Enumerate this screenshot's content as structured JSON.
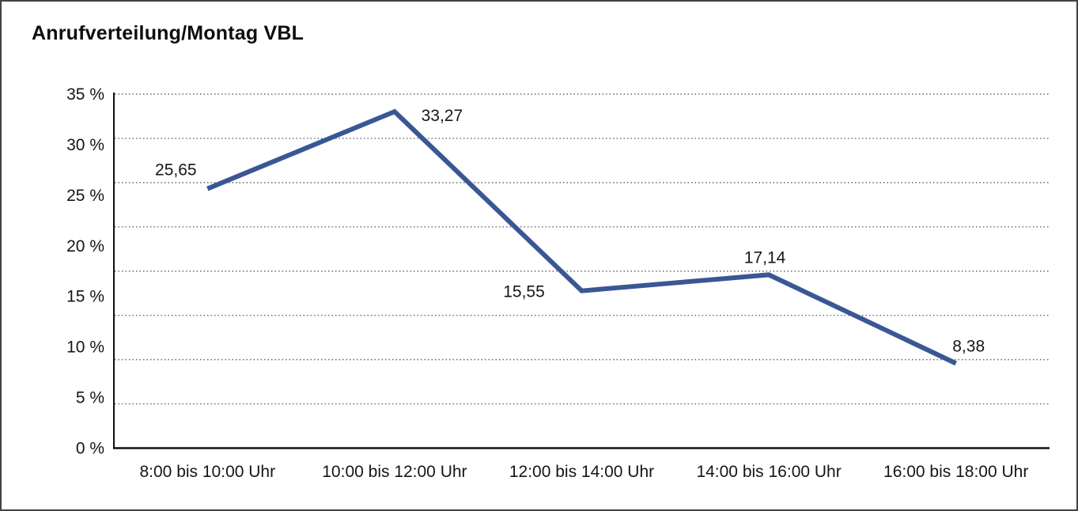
{
  "window": {
    "title": "Anrufverteilung/Montag VBL"
  },
  "chart_data": {
    "type": "line",
    "title": "Anrufverteilung/Montag VBL",
    "categories": [
      "8:00 bis 10:00 Uhr",
      "10:00 bis 12:00 Uhr",
      "12:00 bis 14:00 Uhr",
      "14:00 bis 16:00 Uhr",
      "16:00 bis 18:00 Uhr"
    ],
    "series": [
      {
        "values": [
          25.65,
          33.27,
          15.55,
          17.14,
          8.38
        ],
        "point_labels": [
          "25,65",
          "33,27",
          "15,55",
          "17,14",
          "8,38"
        ],
        "color": "#3a5795"
      }
    ],
    "xlabel": "",
    "ylabel": "",
    "ylim": [
      0,
      35
    ],
    "yticks": [
      {
        "value": 35,
        "label": "35 %"
      },
      {
        "value": 30,
        "label": "30 %"
      },
      {
        "value": 25,
        "label": "25 %"
      },
      {
        "value": 20,
        "label": "20 %"
      },
      {
        "value": 15,
        "label": "15 %"
      },
      {
        "value": 10,
        "label": "10 %"
      },
      {
        "value": 5,
        "label": "5 %"
      },
      {
        "value": 0,
        "label": "0 %"
      }
    ],
    "grid": {
      "horizontal": true,
      "style": "dotted",
      "divisions": 8,
      "color": "#666666"
    },
    "axis_color": "#111111",
    "legend": "none"
  }
}
